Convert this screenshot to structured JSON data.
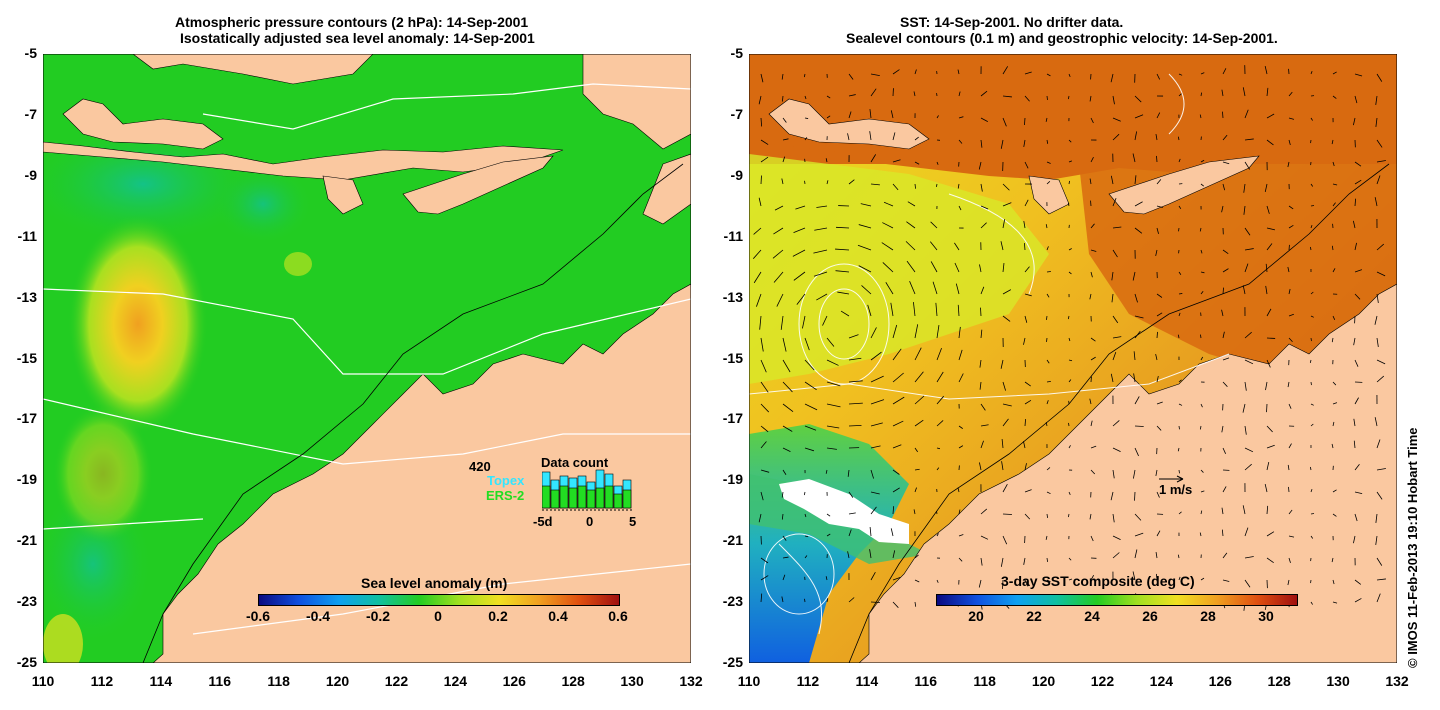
{
  "left_panel": {
    "title_line1": "Atmospheric pressure contours (2 hPa): 14-Sep-2001",
    "title_line2": "Isostatically adjusted sea level anomaly: 14-Sep-2001",
    "colorbar": {
      "title": "Sea level anomaly (m)",
      "ticks": [
        "-0.6",
        "-0.4",
        "-0.2",
        "0",
        "0.2",
        "0.4",
        "0.6"
      ]
    },
    "inset": {
      "count": "420",
      "title": "Data count",
      "series1": "Topex",
      "series2": "ERS-2",
      "series1_color": "#33e6ff",
      "series2_color": "#22dd22",
      "axis_ticks": [
        "-5d",
        "0",
        "5"
      ],
      "bars_total": [
        0.9,
        0.7,
        0.8,
        0.75,
        0.8,
        0.65,
        0.95,
        0.85,
        0.55,
        0.7
      ],
      "bars_ers": [
        0.55,
        0.45,
        0.55,
        0.5,
        0.55,
        0.45,
        0.5,
        0.55,
        0.35,
        0.45
      ]
    }
  },
  "right_panel": {
    "title_line1": "SST: 14-Sep-2001. No drifter data.",
    "title_line2": "Sealevel contours (0.1 m) and geostrophic velocity: 14-Sep-2001.",
    "colorbar": {
      "title": "3-day SST composite (deg C)",
      "ticks": [
        "20",
        "22",
        "24",
        "26",
        "28",
        "30"
      ]
    },
    "scale_label": "1 m/s"
  },
  "axes": {
    "lat_ticks": [
      "-5",
      "-7",
      "-9",
      "-11",
      "-13",
      "-15",
      "-17",
      "-19",
      "-21",
      "-23",
      "-25"
    ],
    "lon_ticks": [
      "110",
      "112",
      "114",
      "116",
      "118",
      "120",
      "122",
      "124",
      "126",
      "128",
      "130",
      "132"
    ]
  },
  "credit": "© IMOS 11-Feb-2013 19:10 Hobart Time",
  "colors": {
    "land": "#fac8a0",
    "ocean_green": "#22cc22",
    "sst_orange": "#e07a10",
    "sst_yellow": "#d8e820"
  }
}
